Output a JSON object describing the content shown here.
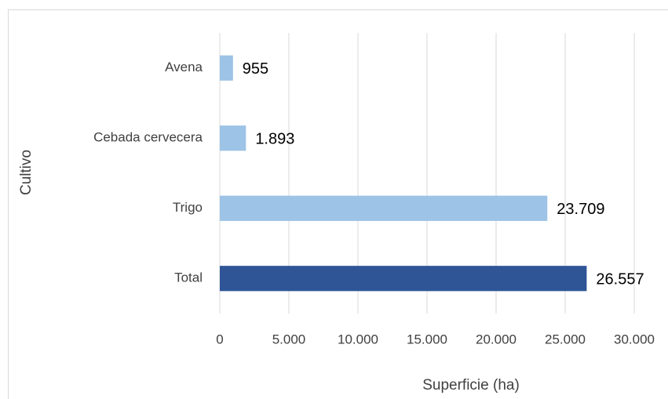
{
  "chart_data": {
    "type": "hbar",
    "categories": [
      "Avena",
      "Cebada cervecera",
      "Trigo",
      "Total"
    ],
    "values": [
      955,
      1893,
      23709,
      26557
    ],
    "value_labels": [
      "955",
      "1.893",
      "23.709",
      "26.557"
    ],
    "colors": [
      "#9dc3e6",
      "#9dc3e6",
      "#9dc3e6",
      "#2f5597"
    ],
    "xlabel": "Superficie (ha)",
    "ylabel": "Cultivo",
    "xlim": [
      0,
      30000
    ],
    "xticks": [
      0,
      {
        "value": 5000,
        "label": "5.000"
      },
      {
        "value": 10000,
        "label": "10.000"
      },
      {
        "value": 15000,
        "label": "15.000"
      },
      {
        "value": 20000,
        "label": "20.000"
      },
      {
        "value": 25000,
        "label": "25.000"
      },
      {
        "value": 30000,
        "label": "30.000"
      }
    ],
    "grid": true
  }
}
